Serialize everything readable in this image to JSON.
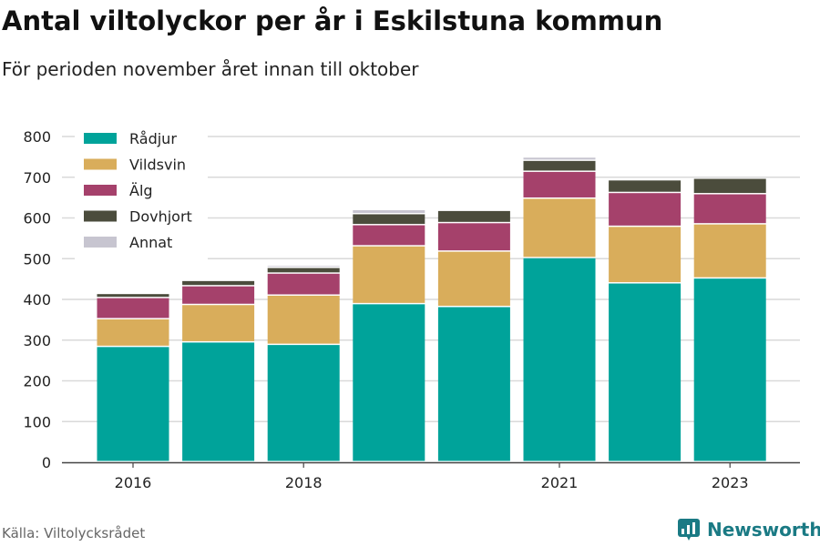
{
  "header": {
    "title": "Antal viltolyckor per år i Eskilstuna kommun",
    "subtitle": "För perioden november året innan till oktober"
  },
  "footer": {
    "source": "Källa: Viltolycksrådet",
    "brand": "Newsworthy"
  },
  "colors": {
    "Rådjur": "#00a39a",
    "Vildsvin": "#d9ad5b",
    "Älg": "#a5416b",
    "Dovhjort": "#4b4c3c",
    "Annat": "#c7c5d0",
    "grid": "#d9d9d9",
    "brand": "#1a7a84"
  },
  "chart_data": {
    "type": "bar",
    "stacked": true,
    "title": "Antal viltolyckor per år i Eskilstuna kommun",
    "subtitle": "För perioden november året innan till oktober",
    "categories": [
      "2016",
      "2017",
      "2018",
      "2019",
      "2020",
      "2021",
      "2022",
      "2023"
    ],
    "x_tick_labels": [
      "2016",
      "",
      "2018",
      "",
      "",
      "2021",
      "",
      "2023"
    ],
    "series": [
      {
        "name": "Rådjur",
        "values": [
          283,
          294,
          288,
          388,
          381,
          501,
          439,
          451
        ]
      },
      {
        "name": "Vildsvin",
        "values": [
          68,
          92,
          121,
          142,
          136,
          146,
          139,
          133
        ]
      },
      {
        "name": "Älg",
        "values": [
          52,
          46,
          54,
          52,
          70,
          66,
          83,
          74
        ]
      },
      {
        "name": "Dovhjort",
        "values": [
          10,
          13,
          14,
          27,
          30,
          27,
          31,
          38
        ]
      },
      {
        "name": "Annat",
        "values": [
          2,
          3,
          5,
          10,
          2,
          8,
          2,
          3
        ]
      }
    ],
    "ylim": [
      0,
      800
    ],
    "yticks": [
      0,
      100,
      200,
      300,
      400,
      500,
      600,
      700,
      800
    ],
    "grid": true,
    "legend": "top-left",
    "xlabel": "",
    "ylabel": ""
  }
}
